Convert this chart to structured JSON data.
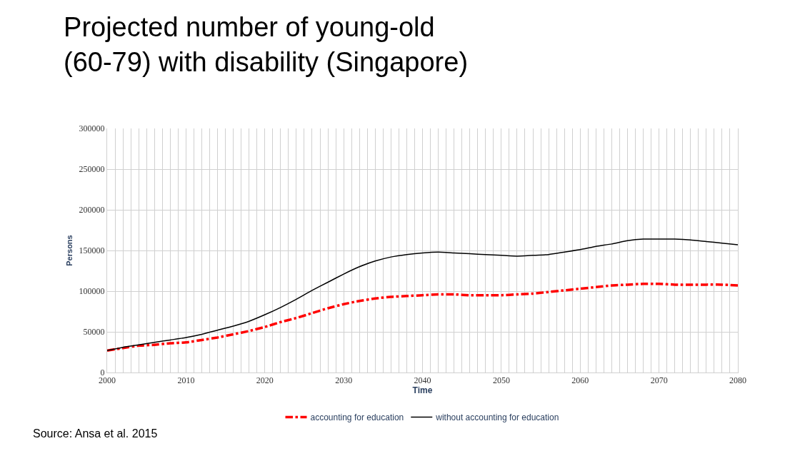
{
  "chart_data": {
    "type": "line",
    "title": "Projected number of young-old\n(60-79) with disability (Singapore)",
    "xlabel": "Time",
    "ylabel": "Persons",
    "annotations": [
      "Source: Ansa et al. 2015"
    ],
    "x": [
      2000,
      2002,
      2004,
      2006,
      2008,
      2010,
      2012,
      2014,
      2016,
      2018,
      2020,
      2022,
      2024,
      2026,
      2028,
      2030,
      2032,
      2034,
      2036,
      2038,
      2040,
      2042,
      2044,
      2046,
      2048,
      2050,
      2052,
      2054,
      2056,
      2058,
      2060,
      2062,
      2064,
      2066,
      2068,
      2070,
      2072,
      2074,
      2076,
      2078,
      2080
    ],
    "series": [
      {
        "name": "accounting for education",
        "color": "#ff0000",
        "line_style": "dashdot",
        "values": [
          27000,
          30000,
          33000,
          34000,
          36000,
          37000,
          40000,
          43000,
          47000,
          51000,
          56000,
          62000,
          67000,
          73000,
          79000,
          84000,
          88000,
          91000,
          93000,
          94000,
          95000,
          96000,
          96000,
          95000,
          95000,
          95000,
          96000,
          97000,
          99000,
          101000,
          103000,
          105000,
          107000,
          108000,
          109000,
          109000,
          108000,
          108000,
          108000,
          108000,
          107000
        ]
      },
      {
        "name": "without accounting for education",
        "color": "#000000",
        "line_style": "solid",
        "values": [
          27000,
          31000,
          34000,
          37000,
          40000,
          43000,
          47000,
          52000,
          57000,
          63000,
          71000,
          80000,
          90000,
          101000,
          111000,
          121000,
          130000,
          137000,
          142000,
          145000,
          147000,
          148000,
          147000,
          146000,
          145000,
          144000,
          143000,
          144000,
          145000,
          148000,
          151000,
          155000,
          158000,
          162000,
          164000,
          164000,
          164000,
          163000,
          161000,
          159000,
          157000
        ]
      }
    ],
    "xlim": [
      2000,
      2080
    ],
    "xticks": [
      2000,
      {
        "value": 2001,
        "label": null
      },
      {
        "value": 2002,
        "label": null
      },
      {
        "value": 2003,
        "label": null
      },
      {
        "value": 2004,
        "label": null
      },
      {
        "value": 2005,
        "label": null
      },
      {
        "value": 2006,
        "label": null
      },
      {
        "value": 2007,
        "label": null
      },
      {
        "value": 2008,
        "label": null
      },
      {
        "value": 2009,
        "label": null
      },
      2010,
      {
        "value": 2011,
        "label": null
      },
      {
        "value": 2012,
        "label": null
      },
      {
        "value": 2013,
        "label": null
      },
      {
        "value": 2014,
        "label": null
      },
      {
        "value": 2015,
        "label": null
      },
      {
        "value": 2016,
        "label": null
      },
      {
        "value": 2017,
        "label": null
      },
      {
        "value": 2018,
        "label": null
      },
      {
        "value": 2019,
        "label": null
      },
      2020,
      {
        "value": 2021,
        "label": null
      },
      {
        "value": 2022,
        "label": null
      },
      {
        "value": 2023,
        "label": null
      },
      {
        "value": 2024,
        "label": null
      },
      {
        "value": 2025,
        "label": null
      },
      {
        "value": 2026,
        "label": null
      },
      {
        "value": 2027,
        "label": null
      },
      {
        "value": 2028,
        "label": null
      },
      {
        "value": 2029,
        "label": null
      },
      2030,
      {
        "value": 2031,
        "label": null
      },
      {
        "value": 2032,
        "label": null
      },
      {
        "value": 2033,
        "label": null
      },
      {
        "value": 2034,
        "label": null
      },
      {
        "value": 2035,
        "label": null
      },
      {
        "value": 2036,
        "label": null
      },
      {
        "value": 2037,
        "label": null
      },
      {
        "value": 2038,
        "label": null
      },
      {
        "value": 2039,
        "label": null
      },
      2040,
      {
        "value": 2041,
        "label": null
      },
      {
        "value": 2042,
        "label": null
      },
      {
        "value": 2043,
        "label": null
      },
      {
        "value": 2044,
        "label": null
      },
      {
        "value": 2045,
        "label": null
      },
      {
        "value": 2046,
        "label": null
      },
      {
        "value": 2047,
        "label": null
      },
      {
        "value": 2048,
        "label": null
      },
      {
        "value": 2049,
        "label": null
      },
      2050,
      {
        "value": 2051,
        "label": null
      },
      {
        "value": 2052,
        "label": null
      },
      {
        "value": 2053,
        "label": null
      },
      {
        "value": 2054,
        "label": null
      },
      {
        "value": 2055,
        "label": null
      },
      {
        "value": 2056,
        "label": null
      },
      {
        "value": 2057,
        "label": null
      },
      {
        "value": 2058,
        "label": null
      },
      {
        "value": 2059,
        "label": null
      },
      2060,
      {
        "value": 2061,
        "label": null
      },
      {
        "value": 2062,
        "label": null
      },
      {
        "value": 2063,
        "label": null
      },
      {
        "value": 2064,
        "label": null
      },
      {
        "value": 2065,
        "label": null
      },
      {
        "value": 2066,
        "label": null
      },
      {
        "value": 2067,
        "label": null
      },
      {
        "value": 2068,
        "label": null
      },
      {
        "value": 2069,
        "label": null
      },
      2070,
      {
        "value": 2071,
        "label": null
      },
      {
        "value": 2072,
        "label": null
      },
      {
        "value": 2073,
        "label": null
      },
      {
        "value": 2074,
        "label": null
      },
      {
        "value": 2075,
        "label": null
      },
      {
        "value": 2076,
        "label": null
      },
      {
        "value": 2077,
        "label": null
      },
      {
        "value": 2078,
        "label": null
      },
      {
        "value": 2079,
        "label": null
      },
      2080
    ],
    "ylim": [
      0,
      300000
    ],
    "yticks": [
      0,
      50000,
      100000,
      150000,
      200000,
      250000,
      300000
    ],
    "grid": true,
    "legend": "bottom",
    "marker": "none"
  }
}
